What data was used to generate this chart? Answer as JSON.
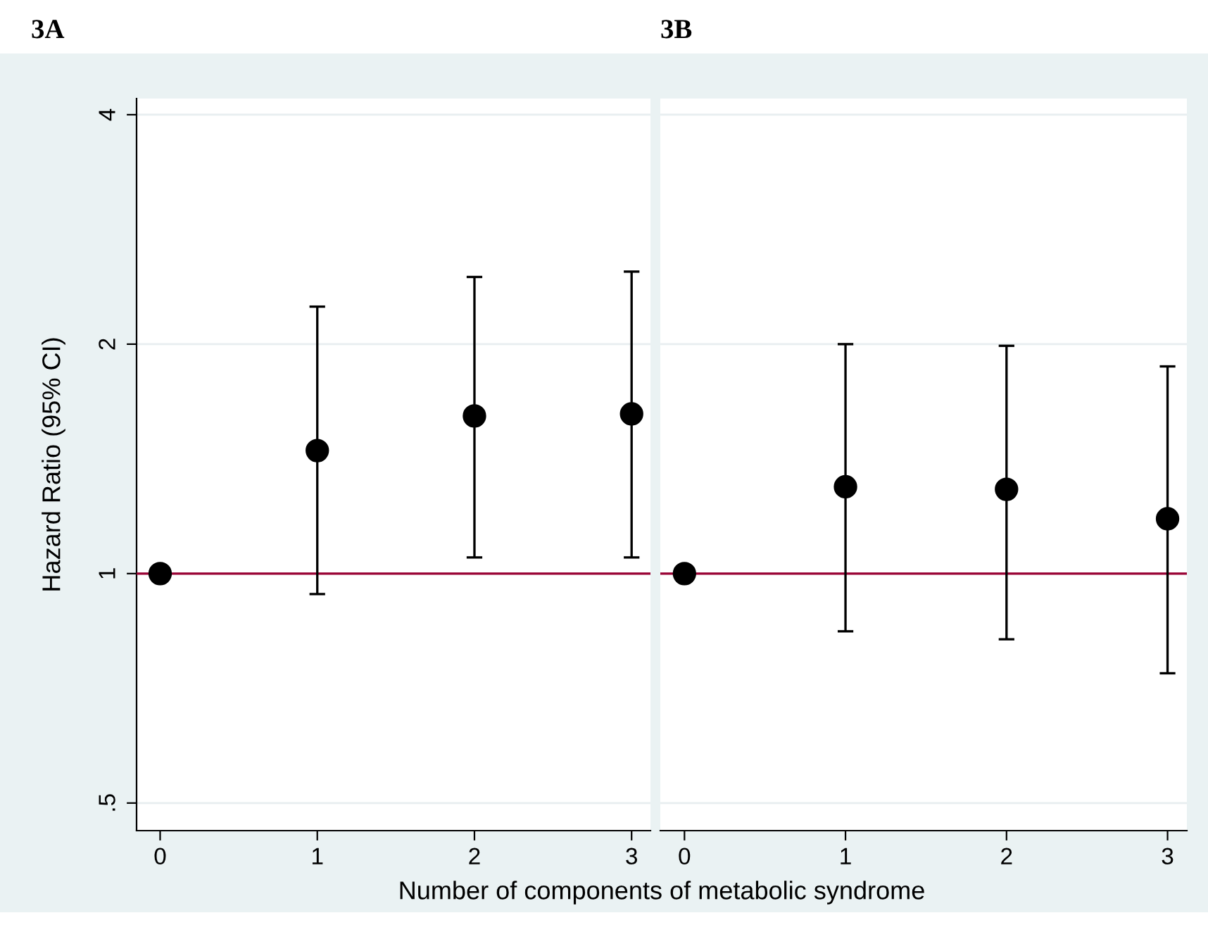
{
  "chart_data": [
    {
      "type": "scatter",
      "title": "3A",
      "ylabel": "Hazard Ratio (95% CI)",
      "x": [
        0,
        1,
        2,
        3
      ],
      "log": "y",
      "xlim": [
        -0.15,
        3.12
      ],
      "xticks": [
        0,
        1,
        2,
        3
      ],
      "ylim": [
        0.46,
        4.2
      ],
      "yticks": [
        {
          "value": 0.5,
          "label": ".5"
        },
        1,
        2,
        4
      ],
      "grid": "y",
      "marker": "circle",
      "legend": false,
      "series": [
        {
          "color": "#000000",
          "values": [
            1,
            1.45,
            1.61,
            1.62
          ],
          "errors": [
            null,
            [
              0.94,
              2.24
            ],
            [
              1.05,
              2.45
            ],
            [
              1.05,
              2.49
            ]
          ]
        }
      ],
      "ref_lines": [
        {
          "axis": "y",
          "value": 1,
          "color": "#990033"
        }
      ]
    },
    {
      "type": "scatter",
      "title": "3B",
      "xlabel": "Number of components of metabolic syndrome",
      "x": [
        0,
        1,
        2,
        3
      ],
      "log": "y",
      "xlim": [
        -0.15,
        3.12
      ],
      "xticks": [
        0,
        1,
        2,
        3
      ],
      "ylim": [
        0.46,
        4.2
      ],
      "yticks": [
        {
          "value": 0.5,
          "label": null
        },
        {
          "value": 1,
          "label": null
        },
        {
          "value": 2,
          "label": null
        },
        {
          "value": 4,
          "label": null
        }
      ],
      "grid": "y",
      "marker": "circle",
      "legend": false,
      "tick_labels": "x",
      "series": [
        {
          "color": "#000000",
          "values": [
            1,
            1.3,
            1.29,
            1.18
          ],
          "errors": [
            null,
            [
              0.84,
              2.0
            ],
            [
              0.82,
              1.99
            ],
            [
              0.74,
              1.87
            ]
          ]
        }
      ],
      "ref_lines": [
        {
          "axis": "y",
          "value": 1,
          "color": "#990033"
        }
      ]
    }
  ]
}
